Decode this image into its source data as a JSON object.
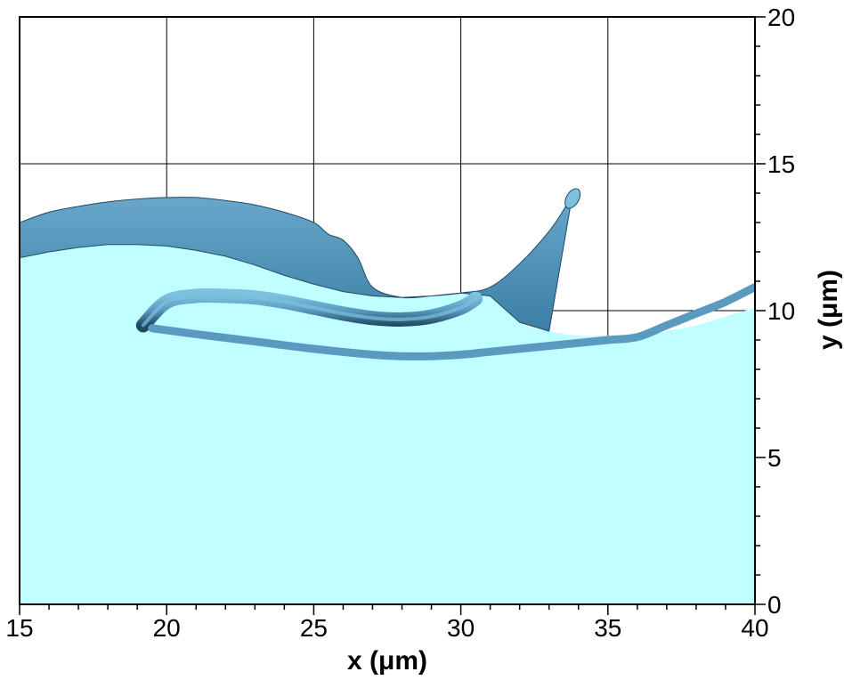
{
  "chart_data": {
    "type": "area",
    "xlabel": "x (μm)",
    "ylabel": "y (μm)",
    "xlim": [
      15,
      40
    ],
    "ylim": [
      0,
      20
    ],
    "xticks": [
      "15",
      "20",
      "25",
      "30",
      "35",
      "40"
    ],
    "yticks": [
      "0",
      "5",
      "10",
      "15",
      "20"
    ],
    "y_axis_side": "right",
    "grid": true,
    "colors": {
      "liquid": "#c0ffff",
      "interface": "#5a9ac0",
      "interface_dark": "#1f4a62",
      "interface_light": "#7ec0de"
    },
    "series": [
      {
        "role": "liquid-fill",
        "x": [
          15,
          16,
          17,
          18,
          19,
          20,
          21,
          22,
          23,
          24,
          25,
          26,
          27,
          28,
          29,
          30,
          31,
          32,
          33,
          34,
          35,
          36,
          37,
          38,
          39,
          40
        ],
        "y": [
          11.8,
          12.0,
          12.15,
          12.25,
          12.25,
          12.2,
          12.05,
          11.85,
          11.55,
          11.2,
          10.9,
          10.65,
          10.5,
          10.45,
          10.5,
          10.6,
          10.5,
          9.6,
          9.3,
          9.15,
          9.15,
          9.1,
          9.3,
          9.5,
          9.8,
          10.1
        ]
      },
      {
        "role": "upper-wave-crest",
        "x": [
          15,
          16,
          17,
          18,
          19,
          20,
          21,
          22,
          23,
          24,
          25,
          25.5,
          26,
          26.5,
          27,
          28,
          29,
          30,
          31,
          32,
          33,
          33.6,
          33.8
        ],
        "y": [
          13.0,
          13.35,
          13.55,
          13.7,
          13.8,
          13.85,
          13.85,
          13.75,
          13.6,
          13.35,
          13.0,
          12.6,
          12.4,
          11.8,
          10.8,
          10.45,
          10.5,
          10.6,
          10.8,
          11.6,
          12.7,
          13.6,
          14.0
        ]
      },
      {
        "role": "curl-tube",
        "x": [
          19.2,
          20,
          21,
          22,
          23,
          24,
          25,
          26,
          27,
          28,
          29,
          30,
          30.5
        ],
        "y": [
          9.5,
          10.3,
          10.5,
          10.5,
          10.45,
          10.3,
          10.1,
          9.9,
          9.75,
          9.7,
          9.8,
          10.1,
          10.4
        ]
      },
      {
        "role": "lower-sheet",
        "x": [
          19.5,
          21,
          23,
          25,
          27,
          28,
          29,
          30,
          31,
          32,
          33,
          34,
          35,
          36,
          37,
          38,
          39,
          40
        ],
        "y": [
          9.4,
          9.2,
          8.95,
          8.7,
          8.5,
          8.45,
          8.45,
          8.5,
          8.6,
          8.7,
          8.8,
          8.9,
          9.0,
          9.1,
          9.5,
          9.9,
          10.3,
          10.8
        ]
      }
    ]
  }
}
